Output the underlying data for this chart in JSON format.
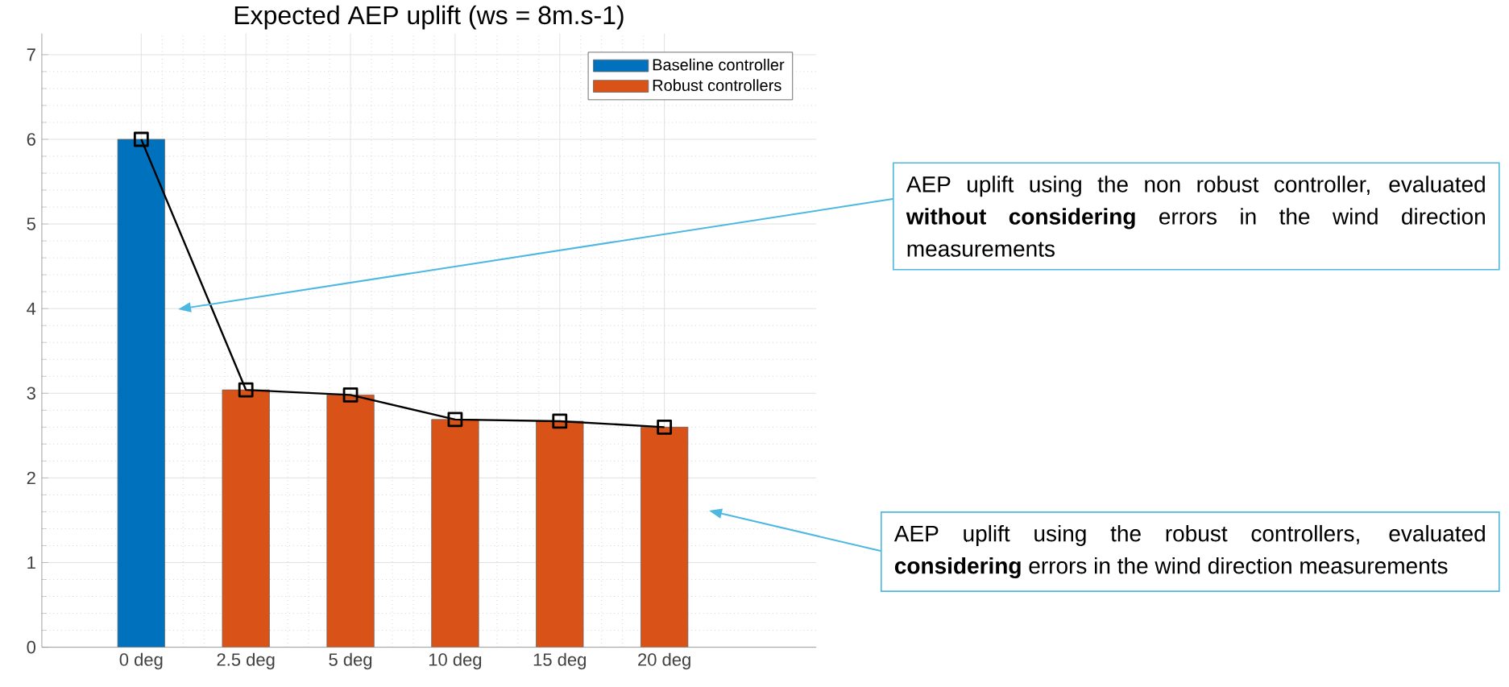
{
  "chart_data": {
    "type": "line",
    "title": "Expected AEP uplift (ws = 8m.s-1)",
    "categories": [
      "0 deg",
      "2.5 deg",
      "5 deg",
      "10 deg",
      "15 deg",
      "20 deg"
    ],
    "series": [
      {
        "name": "Baseline controller",
        "type": "bar",
        "color": "#0072bd",
        "values": [
          6.0,
          null,
          null,
          null,
          null,
          null
        ]
      },
      {
        "name": "Robust controllers",
        "type": "bar",
        "color": "#d95319",
        "values": [
          null,
          3.04,
          2.98,
          2.69,
          2.67,
          2.6
        ]
      },
      {
        "color": "#000000",
        "marker": "square",
        "values": [
          6.0,
          3.04,
          2.98,
          2.69,
          2.67,
          2.6
        ]
      }
    ],
    "ylim": [
      0,
      7.25
    ],
    "yticks": [
      0,
      1,
      2,
      3,
      4,
      5,
      6,
      7
    ],
    "grid": true,
    "legend": "top right",
    "annotations": [
      "AEP uplift using the non robust controller, evaluated **without considering** errors in the wind direction measurements",
      "AEP uplift using the robust controllers, evaluated **considering** errors in the wind direction measurements"
    ]
  }
}
